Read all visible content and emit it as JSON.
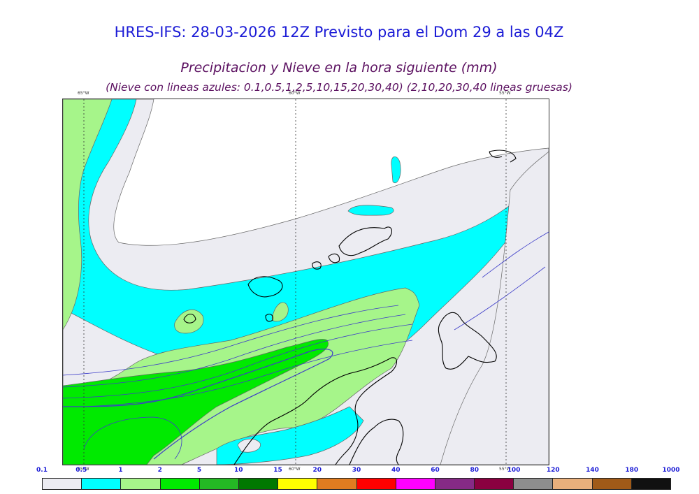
{
  "title_main": "HRES-IFS: 28-03-2026 12Z Previsto para el Dom 29 a las 04Z",
  "title_sub": "Precipitacion y Nieve en la hora siguiente (mm)",
  "title_note": "(Nieve con lineas azules: 0.1,0.5,1,2,5,10,15,20,30,40)  (2,10,20,30,40 lineas gruesas)",
  "meridian_labels": [
    "65°W",
    "60°W",
    "55°W"
  ],
  "scale_ticks": [
    "0.1",
    "0.5",
    "1",
    "2",
    "5",
    "10",
    "15",
    "20",
    "30",
    "40",
    "60",
    "80",
    "100",
    "120",
    "140",
    "180",
    "1000"
  ],
  "scale_colors": [
    "#ececf2",
    "#00ffff",
    "#a6f58a",
    "#00ea00",
    "#24b824",
    "#007800",
    "#ffff00",
    "#e07c20",
    "#ff0000",
    "#ff00ff",
    "#862a86",
    "#8a0040",
    "#8e8e8e",
    "#e9b07c",
    "#a05a18",
    "#111111"
  ],
  "map_colors": {
    "light": "#ececf2",
    "cyan": "#00ffff",
    "lightgreen": "#a6f58a",
    "green": "#00ea00",
    "outline": "#666666",
    "snowline": "#3c3cc8",
    "coast": "#000000"
  }
}
